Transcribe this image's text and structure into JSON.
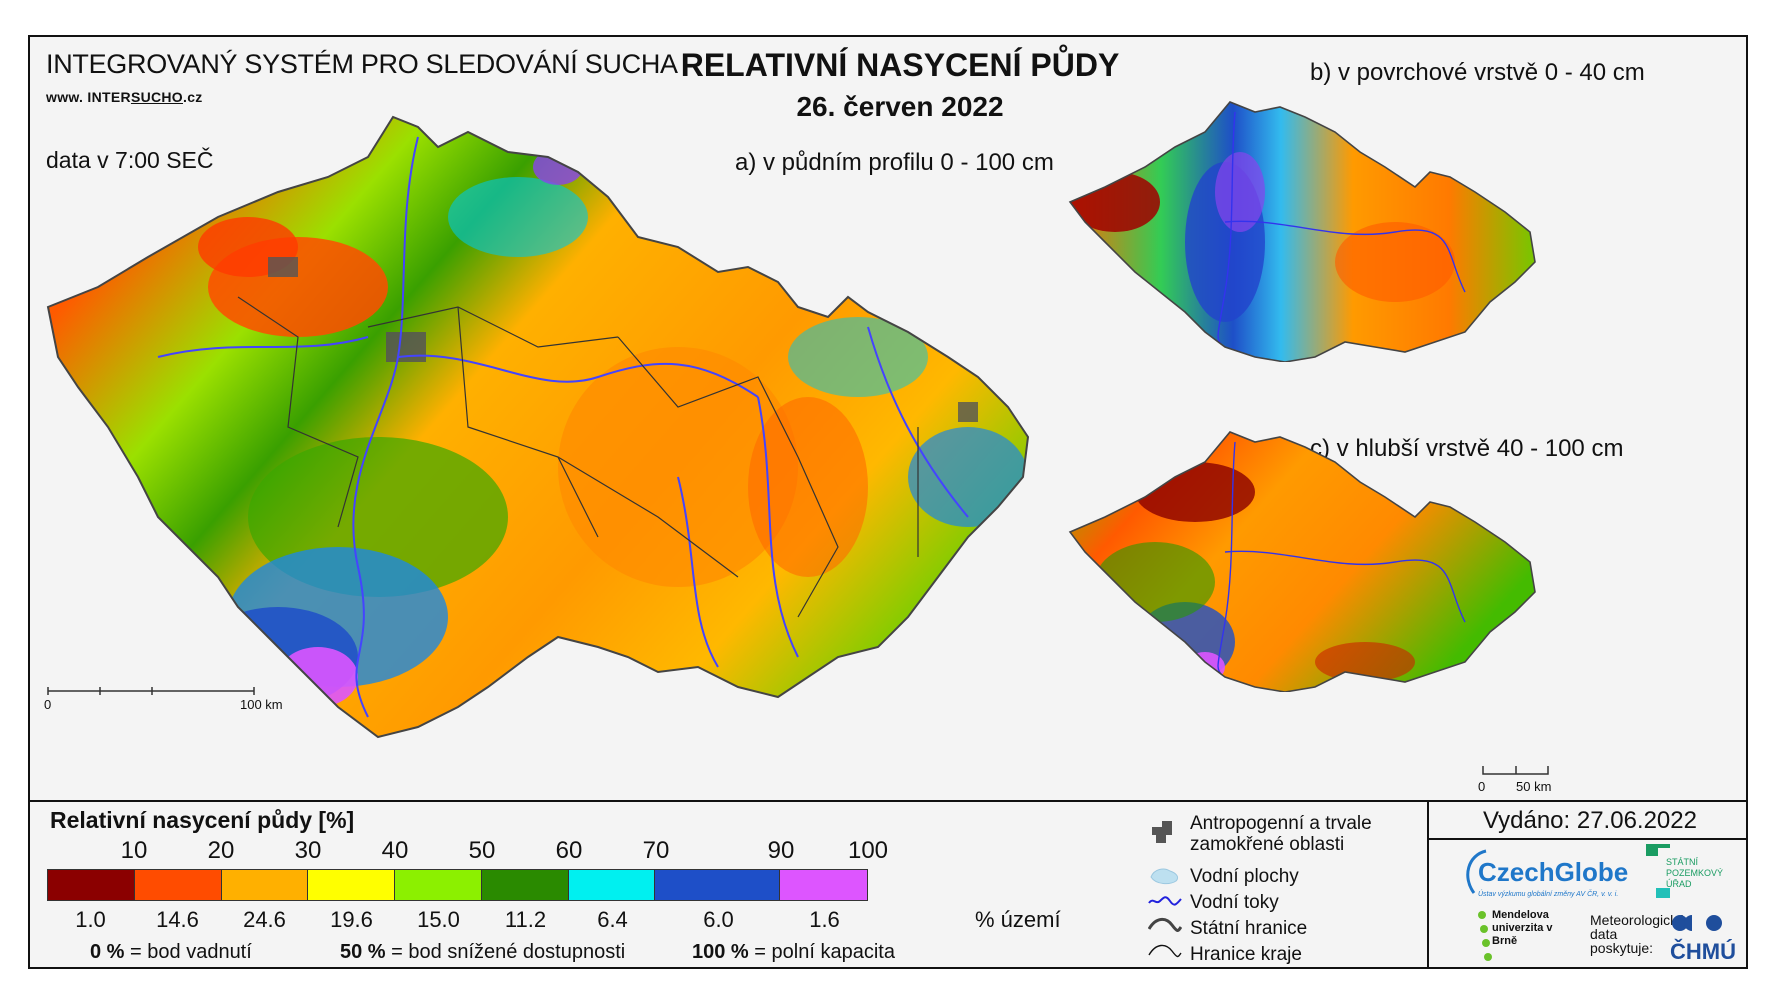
{
  "header": {
    "system_title": "INTEGROVANÝ SYSTÉM PRO SLEDOVÁNÍ SUCHA",
    "website_prefix": "www. INTER",
    "website_underlined": "SUCHO",
    "website_suffix": ".cz",
    "data_time": "data v 7:00 SEČ",
    "main_title": "RELATIVNÍ NASYCENÍ PŮDY",
    "main_date": "26. červen 2022"
  },
  "maps": {
    "a_label": "a) v půdním profilu 0 - 100 cm",
    "b_label": "b) v povrchové vrstvě 0 - 40 cm",
    "c_label": "c) v hlubší vrstvě 40 - 100 cm",
    "scale_a": {
      "start": "0",
      "end": "100 km"
    },
    "scale_c": {
      "start": "0",
      "end": "50 km"
    }
  },
  "legend": {
    "title": "Relativní nasycení půdy [%]",
    "ticks": [
      "10",
      "20",
      "30",
      "40",
      "50",
      "60",
      "70",
      "90",
      "100"
    ],
    "colors": [
      "#8b0000",
      "#ff4c00",
      "#ffb000",
      "#ffff00",
      "#8cf000",
      "#2a8a00",
      "#00f0f0",
      "#1e4fc8",
      "#dd55ff"
    ],
    "area_percent": [
      "1.0",
      "14.6",
      "24.6",
      "19.6",
      "15.0",
      "11.2",
      "6.4",
      "6.0",
      "1.6"
    ],
    "area_unit": "% území",
    "notes": [
      {
        "value": "0 %",
        "text": "= bod vadnutí"
      },
      {
        "value": "50 %",
        "text": "= bod snížené dostupnosti"
      },
      {
        "value": "100 %",
        "text": "= polní kapacita"
      }
    ],
    "symbols": [
      {
        "icon": "anthropogenic-area-icon",
        "label": "Antropogenní a trvale zamokřené oblasti"
      },
      {
        "icon": "water-body-icon",
        "label": "Vodní plochy"
      },
      {
        "icon": "river-icon",
        "label": "Vodní toky"
      },
      {
        "icon": "state-border-icon",
        "label": "Státní hranice"
      },
      {
        "icon": "region-border-icon",
        "label": "Hranice kraje"
      }
    ]
  },
  "footer": {
    "issued": "Vydáno: 27.06.2022",
    "czechglobe": "CzechGlobe",
    "czechglobe_sub": "Ústav výzkumu globální změny AV ČR, v. v. i.",
    "spu": "STÁTNÍ POZEMKOVÝ ÚŘAD",
    "mendelu": "Mendelova univerzita v Brně",
    "meteo": "Meteorologická data poskytuje:",
    "chmu": "ČHMÚ"
  }
}
